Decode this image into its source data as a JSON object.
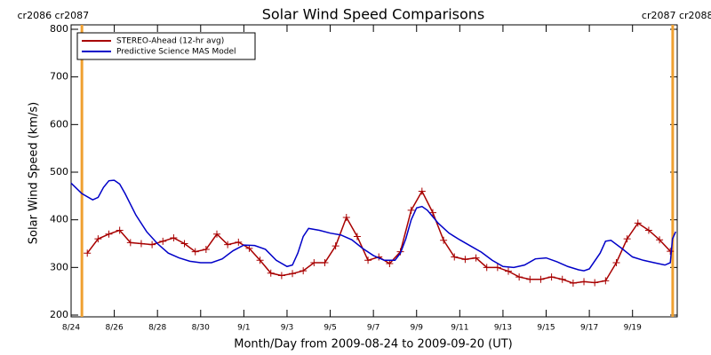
{
  "chart_data": {
    "type": "line",
    "title": "Solar Wind Speed Comparisons",
    "xlabel": "Month/Day from 2009-08-24 to 2009-09-20 (UT)",
    "ylabel": "Solar Wind Speed (km/s)",
    "xlim": [
      0,
      28.07
    ],
    "ylim": [
      200,
      800
    ],
    "yticks": [
      200,
      300,
      400,
      500,
      600,
      700,
      800
    ],
    "xticks": [
      {
        "value": 0,
        "label": "8/24"
      },
      {
        "value": 2,
        "label": "8/26"
      },
      {
        "value": 4,
        "label": "8/28"
      },
      {
        "value": 6,
        "label": "8/30"
      },
      {
        "value": 8,
        "label": "9/1"
      },
      {
        "value": 10,
        "label": "9/3"
      },
      {
        "value": 12,
        "label": "9/5"
      },
      {
        "value": 14,
        "label": "9/7"
      },
      {
        "value": 16,
        "label": "9/9"
      },
      {
        "value": 18,
        "label": "9/11"
      },
      {
        "value": 20,
        "label": "9/13"
      },
      {
        "value": 22,
        "label": "9/15"
      },
      {
        "value": 24,
        "label": "9/17"
      },
      {
        "value": 26,
        "label": "9/19"
      }
    ],
    "legend": "upper left",
    "annotations": [
      {
        "x": 0.5,
        "label": "cr2086 cr2087",
        "color": "#f0a030"
      },
      {
        "x": 27.86,
        "label": "cr2087 cr2088",
        "color": "#f0a030"
      }
    ],
    "series": [
      {
        "name": "STEREO-Ahead (12-hr avg)",
        "color": "#a80000",
        "marker": "plus",
        "x": [
          0.75,
          1.25,
          1.75,
          2.25,
          2.75,
          3.25,
          3.75,
          4.25,
          4.75,
          5.25,
          5.75,
          6.25,
          6.75,
          7.25,
          7.75,
          8.25,
          8.75,
          9.25,
          9.75,
          10.25,
          10.75,
          11.25,
          11.75,
          12.25,
          12.75,
          13.25,
          13.75,
          14.25,
          14.75,
          15.25,
          15.75,
          16.25,
          16.75,
          17.25,
          17.75,
          18.25,
          18.75,
          19.25,
          19.75,
          20.25,
          20.75,
          21.25,
          21.75,
          22.25,
          22.75,
          23.25,
          23.75,
          24.25,
          24.75,
          25.25,
          25.75,
          26.25,
          26.75,
          27.25,
          27.75
        ],
        "values": [
          330,
          360,
          370,
          378,
          352,
          350,
          348,
          355,
          362,
          350,
          333,
          338,
          370,
          348,
          353,
          340,
          315,
          288,
          283,
          287,
          293,
          310,
          310,
          345,
          405,
          365,
          315,
          322,
          308,
          333,
          420,
          460,
          415,
          357,
          322,
          317,
          320,
          300,
          300,
          292,
          280,
          275,
          275,
          280,
          275,
          267,
          270,
          268,
          272,
          310,
          360,
          393,
          378,
          358,
          334
        ]
      },
      {
        "name": "Predictive Science MAS Model",
        "color": "#0000c8",
        "x": [
          0,
          0.5,
          1.0,
          1.25,
          1.5,
          1.75,
          2.0,
          2.25,
          2.5,
          3.0,
          3.5,
          4.0,
          4.5,
          5.0,
          5.5,
          6.0,
          6.5,
          7.0,
          7.5,
          8.0,
          8.5,
          9.0,
          9.5,
          10.0,
          10.25,
          10.5,
          10.75,
          11.0,
          11.5,
          12.0,
          12.5,
          13.0,
          13.5,
          14.0,
          14.5,
          15.0,
          15.25,
          15.5,
          15.75,
          16.0,
          16.25,
          16.5,
          17.0,
          17.5,
          18.0,
          18.5,
          19.0,
          19.5,
          20.0,
          20.5,
          21.0,
          21.5,
          22.0,
          22.5,
          23.0,
          23.5,
          23.75,
          24.0,
          24.5,
          24.75,
          25.0,
          25.5,
          26.0,
          26.5,
          27.0,
          27.5,
          27.75,
          27.85,
          28.0
        ],
        "values": [
          477,
          455,
          442,
          447,
          468,
          482,
          483,
          475,
          455,
          410,
          375,
          350,
          330,
          320,
          313,
          310,
          310,
          318,
          335,
          347,
          346,
          338,
          315,
          302,
          305,
          330,
          365,
          382,
          378,
          372,
          368,
          358,
          340,
          325,
          315,
          315,
          330,
          360,
          400,
          425,
          428,
          420,
          393,
          372,
          358,
          345,
          332,
          315,
          302,
          300,
          305,
          318,
          320,
          312,
          302,
          295,
          293,
          297,
          330,
          355,
          357,
          340,
          322,
          315,
          310,
          305,
          310,
          360,
          375
        ]
      }
    ]
  }
}
